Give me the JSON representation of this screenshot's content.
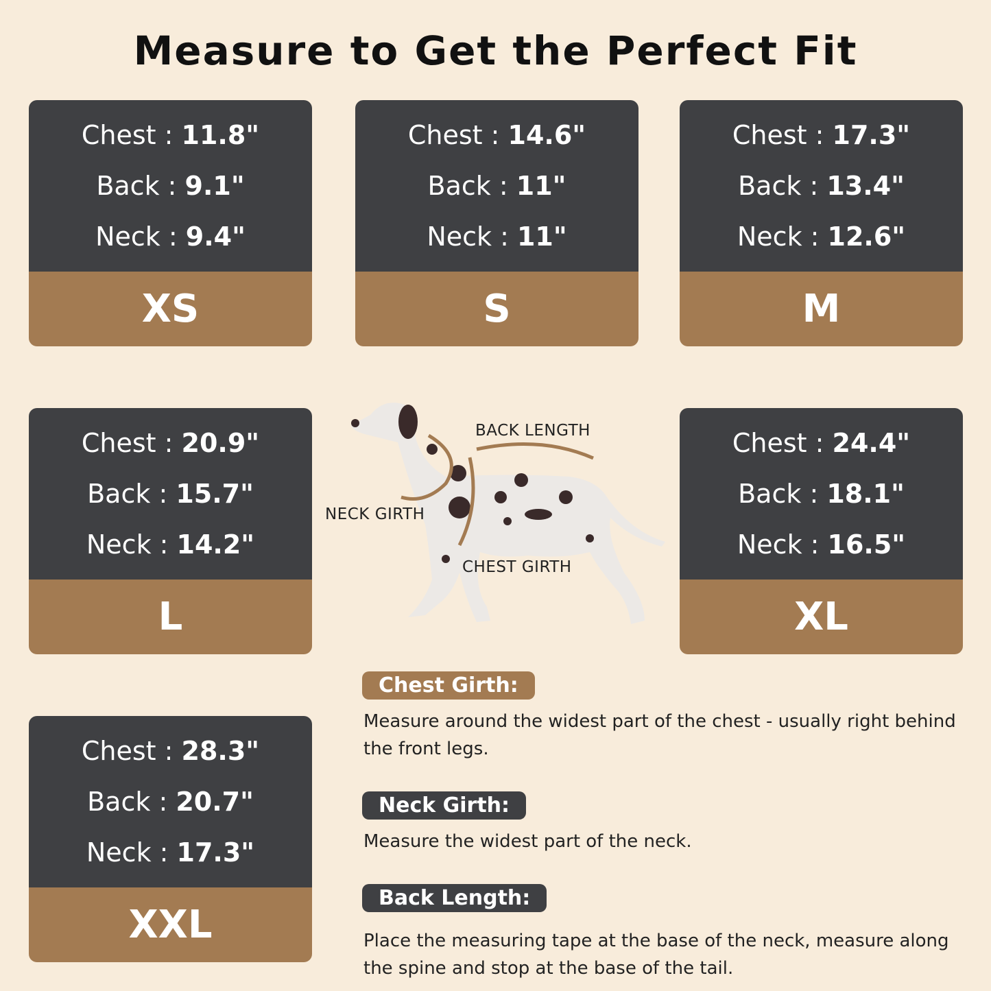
{
  "title": "Measure to Get the Perfect Fit",
  "colors": {
    "background": "#f8ecdb",
    "card_dark": "#3f4043",
    "card_brown": "#a37b52"
  },
  "sizes": [
    {
      "size": "XS",
      "chest": "11.8\"",
      "back": "9.1\"",
      "neck": "9.4\""
    },
    {
      "size": "S",
      "chest": "14.6\"",
      "back": "11\"",
      "neck": "11\""
    },
    {
      "size": "M",
      "chest": "17.3\"",
      "back": "13.4\"",
      "neck": "12.6\""
    },
    {
      "size": "L",
      "chest": "20.9\"",
      "back": "15.7\"",
      "neck": "14.2\""
    },
    {
      "size": "XL",
      "chest": "24.4\"",
      "back": "18.1\"",
      "neck": "16.5\""
    },
    {
      "size": "XXL",
      "chest": "28.3\"",
      "back": "20.7\"",
      "neck": "17.3\""
    }
  ],
  "labels": {
    "chest": "Chest : ",
    "back": "Back : ",
    "neck": "Neck : "
  },
  "diagram": {
    "back_length": "BACK LENGTH",
    "neck_girth": "NECK GIRTH",
    "chest_girth": "CHEST GIRTH"
  },
  "instructions": [
    {
      "heading": "Chest Girth:",
      "text": "Measure around the widest part of the chest - usually right behind the front legs."
    },
    {
      "heading": "Neck Girth:",
      "text": "Measure the widest part of the neck."
    },
    {
      "heading": "Back Length:",
      "text": "Place the measuring tape at the base of the neck, measure along the spine and stop at the base of the tail."
    }
  ]
}
